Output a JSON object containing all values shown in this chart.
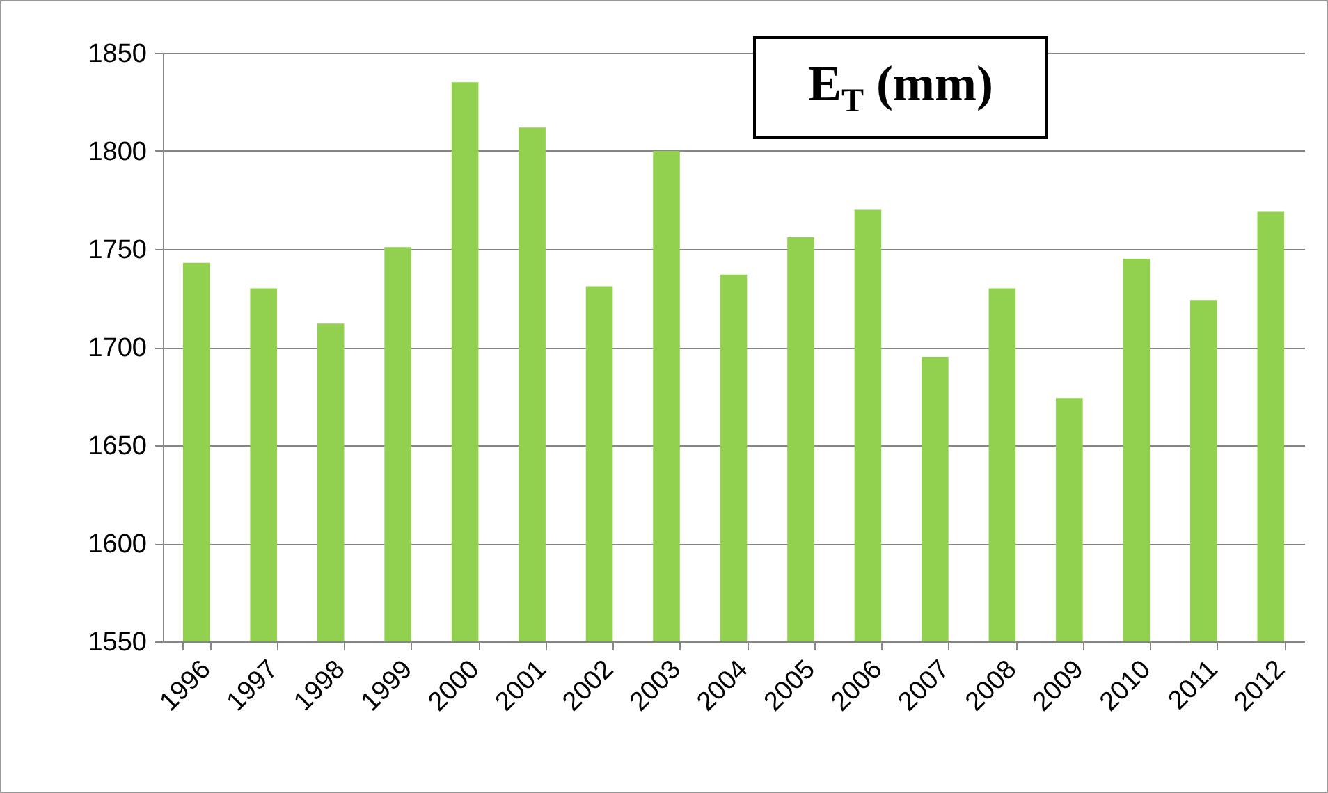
{
  "chart_data": {
    "type": "bar",
    "title": "E$_{T}$ (mm)",
    "categories": [
      "1996",
      "1997",
      "1998",
      "1999",
      "2000",
      "2001",
      "2002",
      "2003",
      "2004",
      "2005",
      "2006",
      "2007",
      "2008",
      "2009",
      "2010",
      "2011",
      "2012"
    ],
    "values": [
      1743,
      1730,
      1712,
      1751,
      1835,
      1812,
      1731,
      1800,
      1737,
      1756,
      1770,
      1695,
      1730,
      1674,
      1745,
      1724,
      1769
    ],
    "color": "#92d050",
    "ylim": [
      1550,
      1850
    ],
    "yticks": [
      1550,
      1600,
      1650,
      1700,
      1750,
      1800,
      1850
    ],
    "grid": "y"
  }
}
